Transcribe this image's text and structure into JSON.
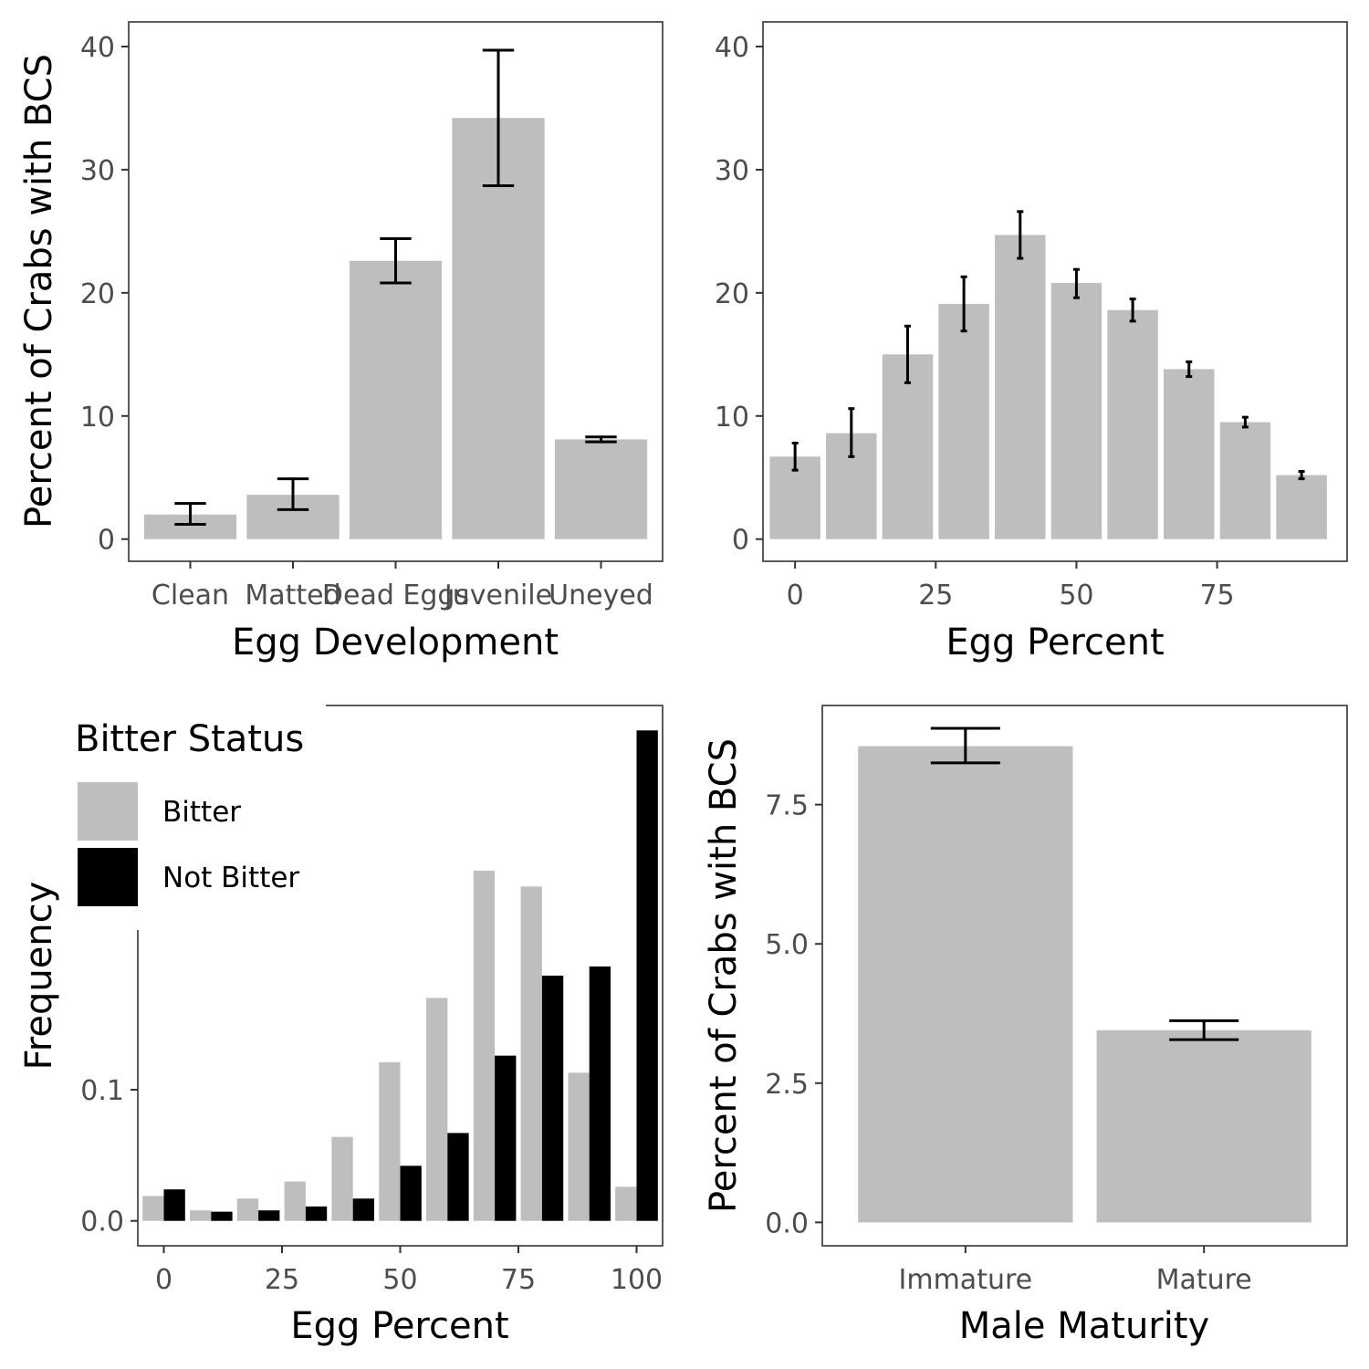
{
  "colors": {
    "bitter": "#bebebe",
    "not_bitter": "#000000",
    "bar": "#bebebe",
    "error": "#000000"
  },
  "chart_data": [
    {
      "id": "egg-development",
      "type": "bar",
      "title": "",
      "xlabel": "Egg Development",
      "ylabel": "Percent of Crabs with BCS",
      "categories": [
        "Clean",
        "Matted",
        "Dead Eggs",
        "Juvenile",
        "Uneyed"
      ],
      "values": [
        2.0,
        3.6,
        22.6,
        34.2,
        8.1
      ],
      "error_low": [
        1.2,
        2.4,
        20.8,
        28.7,
        7.9
      ],
      "error_high": [
        2.9,
        4.9,
        24.4,
        39.7,
        8.3
      ],
      "ylim": [
        -1.8,
        42.0
      ],
      "yticks": [
        0,
        10,
        20,
        30,
        40
      ],
      "ytick_labels": [
        "0",
        "10",
        "20",
        "30",
        "40"
      ],
      "grid": false
    },
    {
      "id": "egg-percent-bcs",
      "type": "bar",
      "title": "",
      "xlabel": "Egg Percent",
      "ylabel": "",
      "x": [
        0,
        10,
        20,
        30,
        40,
        50,
        60,
        70,
        80,
        90
      ],
      "values": [
        6.7,
        8.6,
        15.0,
        19.1,
        24.7,
        20.8,
        18.6,
        13.8,
        9.5,
        5.2
      ],
      "error_low": [
        5.6,
        6.7,
        12.7,
        16.9,
        22.8,
        19.6,
        17.7,
        13.2,
        9.1,
        4.9
      ],
      "error_high": [
        7.8,
        10.6,
        17.3,
        21.3,
        26.6,
        21.9,
        19.5,
        14.4,
        9.9,
        5.5
      ],
      "xlim": [
        -5.7,
        98.1
      ],
      "xticks": [
        0,
        25,
        50,
        75
      ],
      "xtick_labels": [
        "0",
        "25",
        "50",
        "75"
      ],
      "ylim": [
        -1.8,
        42.0
      ],
      "yticks": [
        0,
        10,
        20,
        30,
        40
      ],
      "ytick_labels": [
        "0",
        "10",
        "20",
        "30",
        "40"
      ],
      "grid": false
    },
    {
      "id": "frequency-histogram",
      "type": "bar",
      "title": "",
      "xlabel": "Egg Percent",
      "ylabel": "Frequency",
      "x": [
        0,
        10,
        20,
        30,
        40,
        50,
        60,
        70,
        80,
        90,
        100
      ],
      "series": [
        {
          "name": "Bitter",
          "values": [
            0.019,
            0.008,
            0.017,
            0.03,
            0.064,
            0.121,
            0.17,
            0.267,
            0.255,
            0.113,
            0.026
          ]
        },
        {
          "name": "Not Bitter",
          "values": [
            0.024,
            0.007,
            0.008,
            0.011,
            0.017,
            0.042,
            0.067,
            0.126,
            0.187,
            0.194,
            0.374
          ]
        }
      ],
      "legend": {
        "title": "Bitter Status",
        "position": "top-left"
      },
      "xlim": [
        -5.5,
        105.5
      ],
      "xticks": [
        0,
        25,
        50,
        75,
        100
      ],
      "xtick_labels": [
        "0",
        "25",
        "50",
        "75",
        "100"
      ],
      "ylim": [
        -0.019,
        0.393
      ],
      "yticks": [
        0.0,
        0.1
      ],
      "ytick_labels": [
        "0.0",
        "0.1"
      ],
      "grid": false
    },
    {
      "id": "male-maturity",
      "type": "bar",
      "title": "",
      "xlabel": "Male Maturity",
      "ylabel": "Percent of Crabs with BCS",
      "categories": [
        "Immature",
        "Mature"
      ],
      "values": [
        8.55,
        3.45
      ],
      "error_low": [
        8.25,
        3.28
      ],
      "error_high": [
        8.87,
        3.62
      ],
      "ylim": [
        -0.42,
        9.28
      ],
      "yticks": [
        0.0,
        2.5,
        5.0,
        7.5
      ],
      "ytick_labels": [
        "0.0",
        "2.5",
        "5.0",
        "7.5"
      ],
      "grid": false
    }
  ]
}
